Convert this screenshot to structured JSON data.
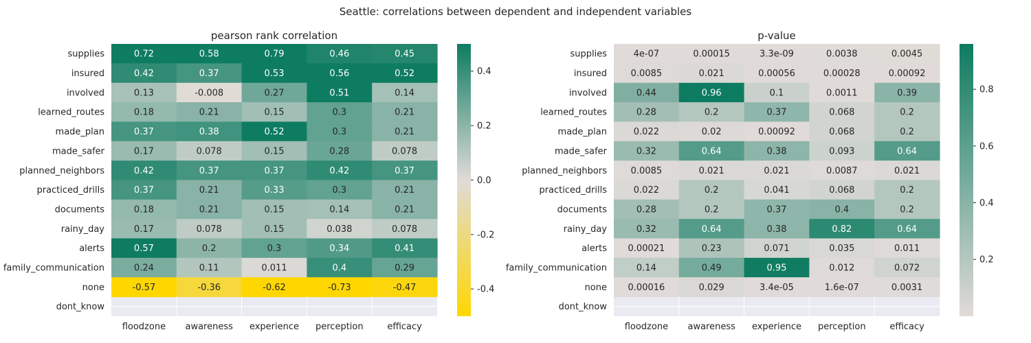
{
  "suptitle": "Seattle: correlations between dependent and independent variables",
  "colors": {
    "nan_background": "#eaeaf2",
    "corr_stops": [
      "#ffd700",
      "#e0dbd8",
      "#0e7c61"
    ],
    "pval_stops": [
      "#e0dbd8",
      "#0e7c61"
    ],
    "text": "#262626"
  },
  "chart_data": [
    {
      "type": "heatmap",
      "title": "pearson rank correlation",
      "x_labels": [
        "floodzone",
        "awareness",
        "experience",
        "perception",
        "efficacy"
      ],
      "y_labels": [
        "supplies",
        "insured",
        "involved",
        "learned_routes",
        "made_plan",
        "made_safer",
        "planned_neighbors",
        "practiced_drills",
        "documents",
        "rainy_day",
        "alerts",
        "family_communication",
        "none",
        "dont_know"
      ],
      "cells": [
        [
          "0.72",
          "0.58",
          "0.79",
          "0.46",
          "0.45"
        ],
        [
          "0.42",
          "0.37",
          "0.53",
          "0.56",
          "0.52"
        ],
        [
          "0.13",
          "-0.008",
          "0.27",
          "0.51",
          "0.14"
        ],
        [
          "0.18",
          "0.21",
          "0.15",
          "0.3",
          "0.21"
        ],
        [
          "0.37",
          "0.38",
          "0.52",
          "0.3",
          "0.21"
        ],
        [
          "0.17",
          "0.078",
          "0.15",
          "0.28",
          "0.078"
        ],
        [
          "0.42",
          "0.37",
          "0.37",
          "0.42",
          "0.37"
        ],
        [
          "0.37",
          "0.21",
          "0.33",
          "0.3",
          "0.21"
        ],
        [
          "0.18",
          "0.21",
          "0.15",
          "0.14",
          "0.21"
        ],
        [
          "0.17",
          "0.078",
          "0.15",
          "0.038",
          "0.078"
        ],
        [
          "0.57",
          "0.2",
          "0.3",
          "0.34",
          "0.41"
        ],
        [
          "0.24",
          "0.11",
          "0.011",
          "0.4",
          "0.29"
        ],
        [
          "-0.57",
          "-0.36",
          "-0.62",
          "-0.73",
          "-0.47"
        ],
        [
          null,
          null,
          null,
          null,
          null
        ]
      ],
      "vmin": -0.5,
      "vmax": 0.5,
      "colorbar_ticks": [
        "-0.4",
        "-0.2",
        "0.0",
        "0.2",
        "0.4"
      ]
    },
    {
      "type": "heatmap",
      "title": "p-value",
      "x_labels": [
        "floodzone",
        "awareness",
        "experience",
        "perception",
        "efficacy"
      ],
      "y_labels": [
        "supplies",
        "insured",
        "involved",
        "learned_routes",
        "made_plan",
        "made_safer",
        "planned_neighbors",
        "practiced_drills",
        "documents",
        "rainy_day",
        "alerts",
        "family_communication",
        "none",
        "dont_know"
      ],
      "cells": [
        [
          "4e-07",
          "0.00015",
          "3.3e-09",
          "0.0038",
          "0.0045"
        ],
        [
          "0.0085",
          "0.021",
          "0.00056",
          "0.00028",
          "0.00092"
        ],
        [
          "0.44",
          "0.96",
          "0.1",
          "0.0011",
          "0.39"
        ],
        [
          "0.28",
          "0.2",
          "0.37",
          "0.068",
          "0.2"
        ],
        [
          "0.022",
          "0.02",
          "0.00092",
          "0.068",
          "0.2"
        ],
        [
          "0.32",
          "0.64",
          "0.38",
          "0.093",
          "0.64"
        ],
        [
          "0.0085",
          "0.021",
          "0.021",
          "0.0087",
          "0.021"
        ],
        [
          "0.022",
          "0.2",
          "0.041",
          "0.068",
          "0.2"
        ],
        [
          "0.28",
          "0.2",
          "0.37",
          "0.4",
          "0.2"
        ],
        [
          "0.32",
          "0.64",
          "0.38",
          "0.82",
          "0.64"
        ],
        [
          "0.00021",
          "0.23",
          "0.071",
          "0.035",
          "0.011"
        ],
        [
          "0.14",
          "0.49",
          "0.95",
          "0.012",
          "0.072"
        ],
        [
          "0.00016",
          "0.029",
          "3.4e-05",
          "1.6e-07",
          "0.0031"
        ],
        [
          null,
          null,
          null,
          null,
          null
        ]
      ],
      "vmin": 0.0,
      "vmax": 0.96,
      "colorbar_ticks": [
        "0.2",
        "0.4",
        "0.6",
        "0.8"
      ]
    }
  ]
}
